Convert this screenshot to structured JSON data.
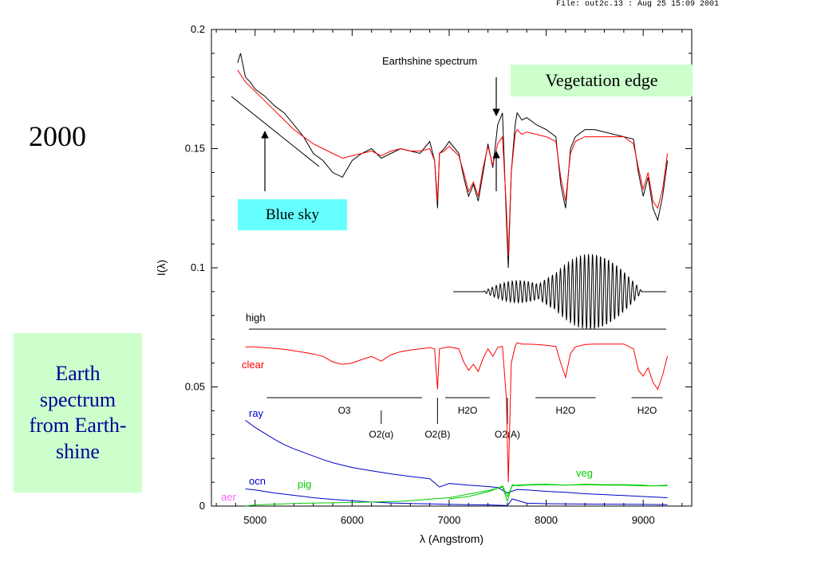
{
  "header": {
    "file_info": "File: out2c.13 : Aug 25 15:09 2001"
  },
  "year_label": "2000",
  "callouts": {
    "vegetation_edge": "Vegetation edge",
    "blue_sky": "Blue sky",
    "earth_spectrum": "Earth spectrum from Earth-shine"
  },
  "colors": {
    "observed": "#000000",
    "model": "#ff0000",
    "ray": "#0000cc",
    "ocn": "#0000cc",
    "veg": "#00cc00",
    "pig": "#00cc00",
    "aer": "#ff66ff",
    "veg_box": "#ccffcc",
    "sky_box": "#66ffff"
  },
  "chart_data": {
    "type": "line",
    "title": "",
    "xlabel": "λ (Angstrom)",
    "ylabel": "I(λ)",
    "xlim": [
      4550,
      9500
    ],
    "ylim": [
      0,
      0.2
    ],
    "x_ticks": [
      5000,
      6000,
      7000,
      8000,
      9000
    ],
    "y_ticks": [
      0,
      0.05,
      0.1,
      0.15,
      0.2
    ],
    "y_tick_labels": [
      "0",
      "0.05",
      "0.1",
      "0.15",
      "0.2"
    ],
    "x_tick_labels": [
      "5000",
      "6000",
      "7000",
      "8000",
      "9000"
    ],
    "annotations": {
      "earthshine": "Earthshine spectrum",
      "high": "high",
      "clear": "clear",
      "ray": "ray",
      "ocn": "ocn",
      "pig": "pig",
      "veg": "veg",
      "aer": "aer"
    },
    "absorption_bands": [
      {
        "label": "O3",
        "x_start": 5120,
        "x_end": 6720
      },
      {
        "label": "H2O",
        "x_start": 6960,
        "x_end": 7420
      },
      {
        "label": "H2O",
        "x_start": 7890,
        "x_end": 8510
      },
      {
        "label": "H2O",
        "x_start": 8880,
        "x_end": 9200
      }
    ],
    "absorption_lines": [
      {
        "label": "O2(α)",
        "x": 6300
      },
      {
        "label": "O2(B)",
        "x": 6880
      },
      {
        "label": "O2(A)",
        "x": 7600
      }
    ],
    "series": [
      {
        "name": "observed",
        "x": [
          4820,
          4850,
          4900,
          4950,
          5000,
          5100,
          5200,
          5300,
          5400,
          5500,
          5600,
          5700,
          5800,
          5900,
          6000,
          6100,
          6200,
          6300,
          6400,
          6500,
          6600,
          6700,
          6800,
          6850,
          6880,
          6900,
          6950,
          7000,
          7100,
          7150,
          7200,
          7250,
          7300,
          7350,
          7400,
          7450,
          7500,
          7550,
          7590,
          7610,
          7640,
          7680,
          7700,
          7750,
          7800,
          7900,
          8000,
          8100,
          8150,
          8200,
          8250,
          8300,
          8400,
          8500,
          8600,
          8700,
          8800,
          8900,
          8950,
          9000,
          9050,
          9100,
          9150,
          9200,
          9250
        ],
        "y": [
          0.186,
          0.19,
          0.18,
          0.178,
          0.175,
          0.172,
          0.168,
          0.165,
          0.16,
          0.155,
          0.148,
          0.145,
          0.14,
          0.138,
          0.145,
          0.148,
          0.15,
          0.146,
          0.148,
          0.15,
          0.149,
          0.148,
          0.153,
          0.145,
          0.125,
          0.148,
          0.15,
          0.153,
          0.148,
          0.138,
          0.13,
          0.135,
          0.128,
          0.14,
          0.152,
          0.142,
          0.16,
          0.165,
          0.12,
          0.1,
          0.14,
          0.16,
          0.165,
          0.162,
          0.163,
          0.16,
          0.158,
          0.155,
          0.135,
          0.125,
          0.15,
          0.155,
          0.158,
          0.158,
          0.157,
          0.156,
          0.155,
          0.154,
          0.14,
          0.13,
          0.138,
          0.125,
          0.12,
          0.13,
          0.145
        ]
      },
      {
        "name": "model",
        "x": [
          4820,
          4900,
          5000,
          5100,
          5200,
          5300,
          5400,
          5500,
          5600,
          5700,
          5800,
          5900,
          6000,
          6100,
          6200,
          6300,
          6400,
          6500,
          6600,
          6700,
          6800,
          6850,
          6880,
          6900,
          6950,
          7000,
          7100,
          7150,
          7200,
          7250,
          7300,
          7350,
          7400,
          7450,
          7500,
          7550,
          7590,
          7610,
          7640,
          7680,
          7700,
          7750,
          7800,
          7900,
          8000,
          8100,
          8150,
          8200,
          8250,
          8300,
          8400,
          8500,
          8600,
          8700,
          8800,
          8900,
          8950,
          9000,
          9050,
          9100,
          9150,
          9200,
          9250
        ],
        "y": [
          0.183,
          0.178,
          0.174,
          0.17,
          0.166,
          0.162,
          0.158,
          0.155,
          0.152,
          0.15,
          0.148,
          0.146,
          0.147,
          0.148,
          0.149,
          0.147,
          0.149,
          0.15,
          0.149,
          0.149,
          0.15,
          0.145,
          0.128,
          0.148,
          0.149,
          0.151,
          0.147,
          0.14,
          0.132,
          0.136,
          0.13,
          0.142,
          0.151,
          0.143,
          0.152,
          0.155,
          0.125,
          0.105,
          0.14,
          0.156,
          0.158,
          0.156,
          0.157,
          0.156,
          0.155,
          0.153,
          0.138,
          0.128,
          0.148,
          0.153,
          0.155,
          0.155,
          0.155,
          0.155,
          0.155,
          0.152,
          0.142,
          0.133,
          0.14,
          0.128,
          0.125,
          0.133,
          0.148
        ]
      }
    ],
    "model_components": [
      {
        "name": "clear",
        "x": [
          4900,
          5000,
          5100,
          5200,
          5300,
          5400,
          5500,
          5600,
          5700,
          5800,
          5900,
          6000,
          6100,
          6200,
          6300,
          6400,
          6500,
          6600,
          6700,
          6800,
          6850,
          6880,
          6900,
          6950,
          7000,
          7100,
          7150,
          7200,
          7250,
          7300,
          7350,
          7400,
          7450,
          7500,
          7550,
          7590,
          7610,
          7640,
          7680,
          7700,
          7750,
          7800,
          7900,
          8000,
          8100,
          8150,
          8200,
          8250,
          8300,
          8400,
          8500,
          8600,
          8700,
          8800,
          8900,
          8950,
          9000,
          9050,
          9100,
          9150,
          9200,
          9250
        ],
        "y": [
          0.0668,
          0.0668,
          0.0665,
          0.0662,
          0.0658,
          0.0652,
          0.0645,
          0.0638,
          0.0628,
          0.0605,
          0.0595,
          0.06,
          0.0615,
          0.0628,
          0.0608,
          0.0635,
          0.0648,
          0.0655,
          0.066,
          0.0665,
          0.066,
          0.049,
          0.066,
          0.0665,
          0.0668,
          0.066,
          0.0605,
          0.057,
          0.0595,
          0.0565,
          0.062,
          0.066,
          0.0628,
          0.0666,
          0.067,
          0.045,
          0.01,
          0.06,
          0.067,
          0.0685,
          0.068,
          0.068,
          0.0678,
          0.0675,
          0.067,
          0.06,
          0.054,
          0.064,
          0.0668,
          0.0678,
          0.068,
          0.068,
          0.068,
          0.068,
          0.066,
          0.057,
          0.0545,
          0.058,
          0.052,
          0.049,
          0.055,
          0.063
        ]
      },
      {
        "name": "ray",
        "x": [
          4900,
          5000,
          5100,
          5200,
          5300,
          5400,
          5500,
          5600,
          5700,
          5800,
          5900,
          6000,
          6200,
          6400,
          6600,
          6800,
          6900,
          7000,
          7200,
          7400,
          7500,
          7600,
          7700,
          7800,
          8000,
          8200,
          8400,
          8600,
          8800,
          9000,
          9250
        ],
        "y": [
          0.036,
          0.033,
          0.0305,
          0.028,
          0.0258,
          0.024,
          0.0225,
          0.021,
          0.0195,
          0.0182,
          0.0172,
          0.0162,
          0.0148,
          0.0135,
          0.0124,
          0.0115,
          0.008,
          0.0095,
          0.0088,
          0.0082,
          0.0078,
          0.0055,
          0.007,
          0.0068,
          0.0062,
          0.0058,
          0.0052,
          0.0048,
          0.0044,
          0.004,
          0.0035
        ]
      },
      {
        "name": "ocn",
        "x": [
          4900,
          5000,
          5200,
          5400,
          5600,
          5800,
          6000,
          6200,
          6400,
          6600,
          6800,
          7000,
          7200,
          7400,
          7600,
          7650,
          7800,
          8000,
          8500,
          9000,
          9250
        ],
        "y": [
          0.0072,
          0.0068,
          0.0055,
          0.0045,
          0.0035,
          0.0028,
          0.0022,
          0.0017,
          0.0013,
          0.0011,
          0.0009,
          0.0007,
          0.0006,
          0.0005,
          0.0002,
          0.003,
          0.0012,
          0.001,
          0.0008,
          0.0007,
          0.0006
        ]
      },
      {
        "name": "pig",
        "x": [
          4900,
          5000,
          5500,
          6000,
          6500,
          7000,
          7200,
          7400,
          7550,
          7600,
          7650,
          7700,
          7800,
          8000,
          8200,
          8400,
          8600,
          8800,
          9000,
          9250
        ],
        "y": [
          0.0,
          0.0005,
          0.0012,
          0.0015,
          0.002,
          0.0035,
          0.005,
          0.0065,
          0.008,
          0.002,
          0.009,
          0.0085,
          0.0088,
          0.009,
          0.0088,
          0.009,
          0.0088,
          0.0088,
          0.0085,
          0.0085
        ]
      },
      {
        "name": "veg",
        "x": [
          7000,
          7200,
          7400,
          7500,
          7550,
          7600,
          7650,
          7700,
          7800,
          8000,
          8200,
          8400,
          8600,
          8800,
          9000,
          9100,
          9250
        ],
        "y": [
          0.003,
          0.004,
          0.006,
          0.0075,
          0.0085,
          0.004,
          0.0085,
          0.0088,
          0.009,
          0.0092,
          0.0088,
          0.0092,
          0.009,
          0.009,
          0.0088,
          0.0085,
          0.0088
        ]
      }
    ]
  }
}
